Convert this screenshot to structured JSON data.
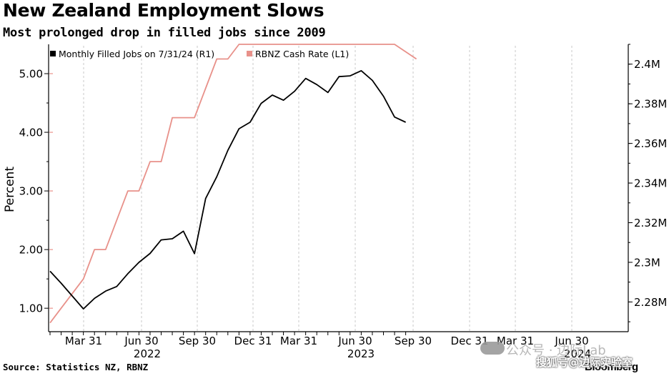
{
  "title": "New Zealand Employment Slows",
  "subtitle": "Most prolonged drop in filled jobs since 2009",
  "source": "Source: Statistics NZ, RBNZ",
  "brand": "Bloomberg",
  "watermark": {
    "line1": "公众号 · 边际Lab",
    "line2": "搜狐号@边际实验室"
  },
  "colors": {
    "jobs": "#000000",
    "rate": "#e8918a",
    "grid": "#c8c8c8",
    "axis": "#000000"
  },
  "chart_data": {
    "type": "line",
    "title": "New Zealand Employment Slows",
    "subtitle": "Most prolonged drop in filled jobs since 2009",
    "ylabel": "Percent",
    "left_axis": {
      "ylim": [
        0.6,
        5.5
      ],
      "ticks": [
        1.0,
        2.0,
        3.0,
        4.0,
        5.0
      ],
      "tick_labels": [
        "1.00",
        "2.00",
        "3.00",
        "4.00",
        "5.00"
      ]
    },
    "right_axis": {
      "unit": "M",
      "ylim": [
        2.265,
        2.41
      ],
      "ticks": [
        2.28,
        2.3,
        2.32,
        2.34,
        2.36,
        2.38,
        2.4
      ],
      "tick_labels": [
        "2.28M",
        "2.3M",
        "2.32M",
        "2.34M",
        "2.36M",
        "2.38M",
        "2.4M"
      ]
    },
    "x_ticks": [
      {
        "label": "Mar 31",
        "year": ""
      },
      {
        "label": "Jun 30",
        "year": "2022"
      },
      {
        "label": "Sep 30",
        "year": ""
      },
      {
        "label": "Dec 31",
        "year": ""
      },
      {
        "label": "Mar 31",
        "year": ""
      },
      {
        "label": "Jun 30",
        "year": "2023"
      },
      {
        "label": "Sep 30",
        "year": ""
      },
      {
        "label": "Dec 31",
        "year": ""
      },
      {
        "label": "Mar 31",
        "year": ""
      },
      {
        "label": "Jun 30",
        "year": "2024"
      }
    ],
    "legend_position": "top-left",
    "grid": "vertical",
    "series": [
      {
        "name": "Monthly Filled Jobs on 7/31/24 (R1)",
        "axis": "right",
        "color": "#000000",
        "values": [
          2.2955,
          2.2895,
          2.283,
          2.2765,
          2.2818,
          2.2855,
          2.2878,
          2.2943,
          2.3,
          2.3045,
          2.3113,
          2.3119,
          2.3157,
          2.3044,
          2.3322,
          2.3432,
          2.3565,
          2.3674,
          2.3707,
          2.3802,
          2.3844,
          2.3818,
          2.3863,
          2.3928,
          2.3897,
          2.3857,
          2.3937,
          2.3941,
          2.3967,
          2.3918,
          2.3838,
          2.3733,
          2.3707
        ]
      },
      {
        "name": "RBNZ Cash Rate (L1)",
        "axis": "left",
        "color": "#e8918a",
        "values": [
          0.75,
          1.0,
          1.25,
          1.5,
          2.0,
          2.0,
          2.5,
          3.0,
          3.0,
          3.5,
          3.5,
          4.25,
          4.25,
          4.25,
          4.75,
          5.25,
          5.25,
          5.5,
          5.5,
          5.5,
          5.5,
          5.5,
          5.5,
          5.5,
          5.5,
          5.5,
          5.5,
          5.5,
          5.5,
          5.5,
          5.5,
          5.5,
          5.25
        ]
      }
    ]
  }
}
